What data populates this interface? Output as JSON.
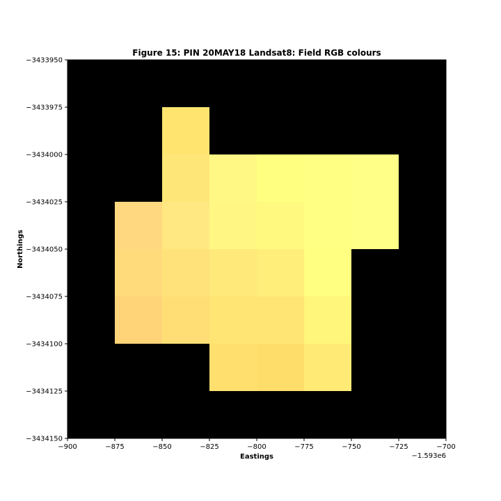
{
  "chart_data": {
    "type": "heatmap",
    "title": "Figure 15: PIN 20MAY18  Landsat8: Field RGB colours",
    "xlabel": "Eastings",
    "ylabel": "Northings",
    "x_offset_label": "−1.593e6",
    "xlim": [
      -900,
      -700
    ],
    "ylim": [
      -3434150,
      -3433950
    ],
    "x_ticks": [
      -900,
      -875,
      -850,
      -825,
      -800,
      -775,
      -750,
      -725,
      -700
    ],
    "x_tick_labels": [
      "−900",
      "−875",
      "−850",
      "−825",
      "−800",
      "−775",
      "−750",
      "−725",
      "−700"
    ],
    "y_ticks": [
      -3433950,
      -3433975,
      -3434000,
      -3434025,
      -3434050,
      -3434075,
      -3434100,
      -3434125,
      -3434150
    ],
    "y_tick_labels": [
      "−3433950",
      "−3433975",
      "−3434000",
      "−3434025",
      "−3434050",
      "−3434075",
      "−3434100",
      "−3434125",
      "−3434150"
    ],
    "background_color": "#000000",
    "cell_size": 25,
    "cells": [
      {
        "x0": -850,
        "y_top": -3433975,
        "color": "#ffe570"
      },
      {
        "x0": -850,
        "y_top": -3434000,
        "color": "#ffe678"
      },
      {
        "x0": -825,
        "y_top": -3434000,
        "color": "#fff884"
      },
      {
        "x0": -800,
        "y_top": -3434000,
        "color": "#ffff80"
      },
      {
        "x0": -775,
        "y_top": -3434000,
        "color": "#ffff83"
      },
      {
        "x0": -750,
        "y_top": -3434000,
        "color": "#ffff88"
      },
      {
        "x0": -875,
        "y_top": -3434025,
        "color": "#ffd880"
      },
      {
        "x0": -850,
        "y_top": -3434025,
        "color": "#ffe882"
      },
      {
        "x0": -825,
        "y_top": -3434025,
        "color": "#fff683"
      },
      {
        "x0": -800,
        "y_top": -3434025,
        "color": "#fff980"
      },
      {
        "x0": -775,
        "y_top": -3434025,
        "color": "#ffff84"
      },
      {
        "x0": -750,
        "y_top": -3434025,
        "color": "#ffff88"
      },
      {
        "x0": -875,
        "y_top": -3434050,
        "color": "#ffdb7c"
      },
      {
        "x0": -850,
        "y_top": -3434050,
        "color": "#ffe37a"
      },
      {
        "x0": -825,
        "y_top": -3434050,
        "color": "#ffe97b"
      },
      {
        "x0": -800,
        "y_top": -3434050,
        "color": "#ffef7a"
      },
      {
        "x0": -775,
        "y_top": -3434050,
        "color": "#ffff81"
      },
      {
        "x0": -875,
        "y_top": -3434075,
        "color": "#ffd377"
      },
      {
        "x0": -850,
        "y_top": -3434075,
        "color": "#ffdf75"
      },
      {
        "x0": -825,
        "y_top": -3434075,
        "color": "#ffe573"
      },
      {
        "x0": -800,
        "y_top": -3434075,
        "color": "#ffe674"
      },
      {
        "x0": -775,
        "y_top": -3434075,
        "color": "#fff67b"
      },
      {
        "x0": -825,
        "y_top": -3434100,
        "color": "#ffe06f"
      },
      {
        "x0": -800,
        "y_top": -3434100,
        "color": "#ffdd6a"
      },
      {
        "x0": -775,
        "y_top": -3434100,
        "color": "#ffea75"
      }
    ]
  }
}
